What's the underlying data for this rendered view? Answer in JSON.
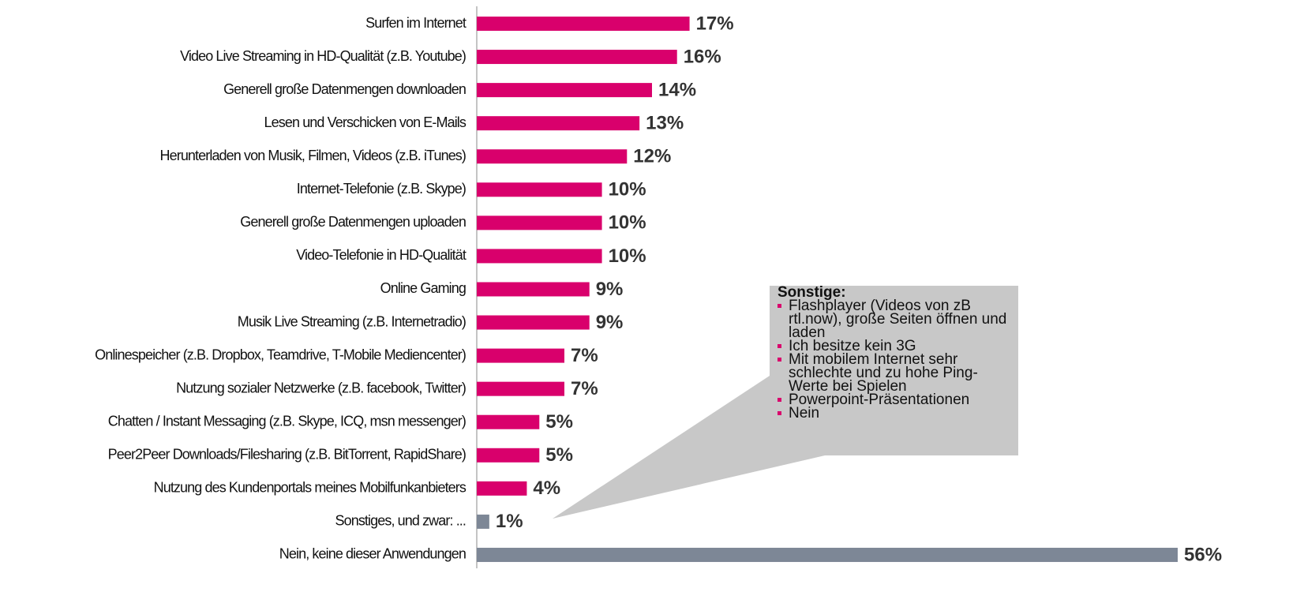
{
  "chart_data": {
    "type": "bar",
    "orientation": "horizontal",
    "categories": [
      "Surfen im Internet",
      "Video Live Streaming in HD-Qualität (z.B. Youtube)",
      "Generell große Datenmengen downloaden",
      "Lesen und Verschicken von E-Mails",
      "Herunterladen von Musik, Filmen, Videos (z.B. iTunes)",
      "Internet-Telefonie (z.B. Skype)",
      "Generell große Datenmengen uploaden",
      "Video-Telefonie in HD-Qualität",
      "Online Gaming",
      "Musik Live Streaming (z.B. Internetradio)",
      "Onlinespeicher (z.B. Dropbox, Teamdrive, T-Mobile Mediencenter)",
      "Nutzung sozialer Netzwerke (z.B. facebook, Twitter)",
      "Chatten / Instant Messaging (z.B. Skype, ICQ, msn messenger)",
      "Peer2Peer Downloads/Filesharing (z.B. BitTorrent, RapidShare)",
      "Nutzung des Kundenportals meines Mobilfunkanbieters",
      "Sonstiges, und zwar: ...",
      "Nein, keine dieser Anwendungen"
    ],
    "values": [
      17,
      16,
      14,
      13,
      12,
      10,
      10,
      10,
      9,
      9,
      7,
      7,
      5,
      5,
      4,
      1,
      56
    ],
    "value_labels": [
      "17%",
      "16%",
      "14%",
      "13%",
      "12%",
      "10%",
      "10%",
      "10%",
      "9%",
      "9%",
      "7%",
      "7%",
      "5%",
      "5%",
      "4%",
      "1%",
      "56%"
    ],
    "colors": [
      "#d9006c",
      "#d9006c",
      "#d9006c",
      "#d9006c",
      "#d9006c",
      "#d9006c",
      "#d9006c",
      "#d9006c",
      "#d9006c",
      "#d9006c",
      "#d9006c",
      "#d9006c",
      "#d9006c",
      "#d9006c",
      "#d9006c",
      "#7d8796",
      "#7d8796"
    ],
    "xlim": [
      0,
      56
    ],
    "annotation": {
      "title": "Sonstige:",
      "items": [
        "Flashplayer (Videos von zB rtl.now), große Seiten öffnen und laden",
        "Ich besitze kein 3G",
        "Mit mobilem Internet sehr schlechte und zu hohe Ping-Werte bei Spielen",
        "Powerpoint-Präsentationen",
        "Nein"
      ]
    }
  }
}
